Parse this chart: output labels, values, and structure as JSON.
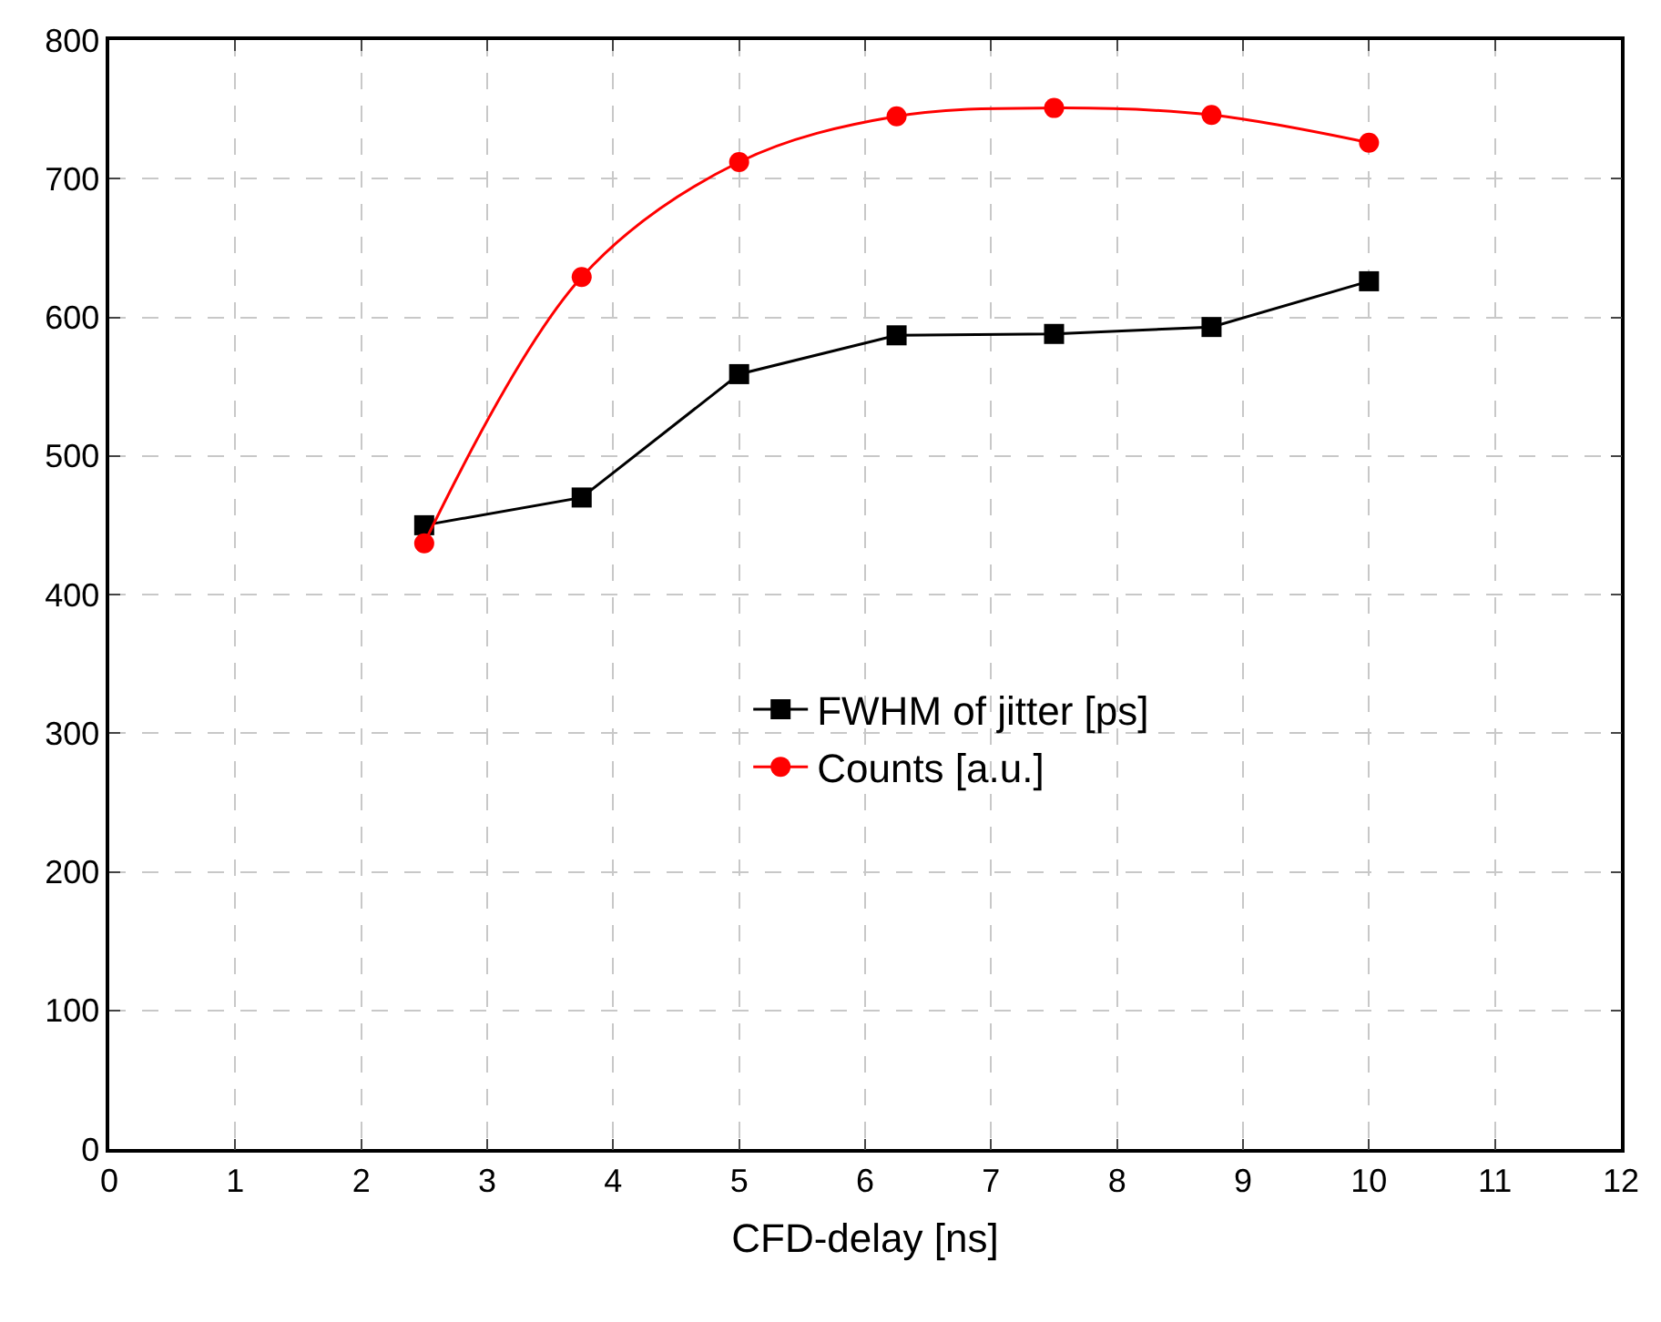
{
  "chart_data": {
    "type": "line",
    "xlabel": "CFD-delay [ns]",
    "x": [
      2.5,
      3.75,
      5,
      6.25,
      7.5,
      8.75,
      10
    ],
    "series": [
      {
        "name": "FWHM of jitter [ps]",
        "color": "#000000",
        "marker": "square",
        "values": [
          450,
          470,
          559,
          587,
          588,
          593,
          626
        ]
      },
      {
        "name": "Counts [a.u.]",
        "color": "#ff0000",
        "marker": "circle",
        "values": [
          437,
          629,
          712,
          745,
          751,
          746,
          726
        ]
      }
    ],
    "xlim": [
      0,
      12
    ],
    "xticks": [
      0,
      1,
      2,
      3,
      4,
      5,
      6,
      7,
      8,
      9,
      10,
      11,
      12
    ],
    "ylim": [
      0,
      800
    ],
    "yticks": [
      0,
      100,
      200,
      300,
      400,
      500,
      600,
      700,
      800
    ],
    "grid": true,
    "legend": "right",
    "line_style": "solid"
  }
}
